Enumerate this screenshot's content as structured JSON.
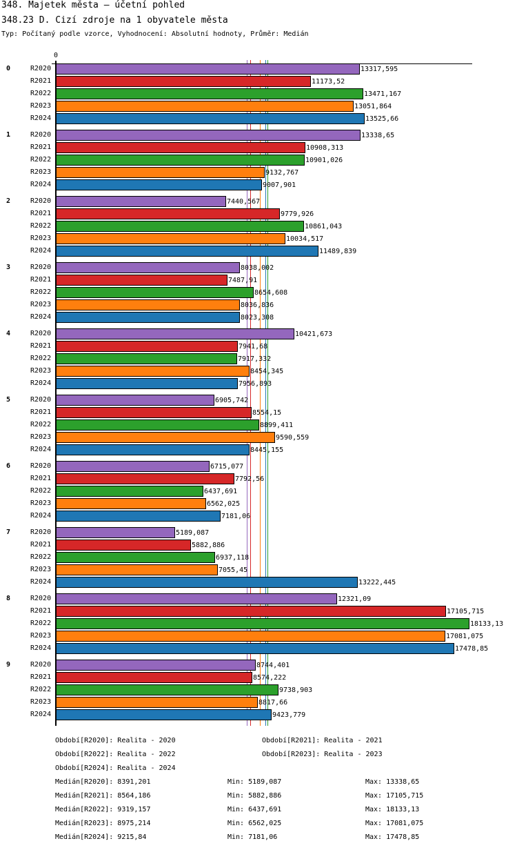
{
  "header": {
    "title": "348. Majetek města – účetní pohled",
    "subtitle": "348.23 D. Cizí zdroje na 1 obyvatele města",
    "info": "Typ: Počítaný podle vzorce, Vyhodnocení: Absolutní hodnoty, Průměr: Medián"
  },
  "chart_data": {
    "type": "bar",
    "orientation": "horizontal",
    "x_tick_label": "0",
    "xlim": [
      0,
      18133.13
    ],
    "categories": [
      "0",
      "1",
      "2",
      "3",
      "4",
      "5",
      "6",
      "7",
      "8",
      "9"
    ],
    "series": [
      {
        "name": "R2020",
        "color": "#9467bd",
        "values": [
          13317.595,
          13338.65,
          7440.567,
          8038.002,
          10421.673,
          6905.742,
          6715.077,
          5189.087,
          12321.09,
          8744.401
        ],
        "labels": [
          "13317,595",
          "13338,65",
          "7440,567",
          "8038,002",
          "10421,673",
          "6905,742",
          "6715,077",
          "5189,087",
          "12321,09",
          "8744,401"
        ]
      },
      {
        "name": "R2021",
        "color": "#d62728",
        "values": [
          11173.52,
          10908.313,
          9779.926,
          7487.91,
          7941.68,
          8554.15,
          7792.56,
          5882.886,
          17105.715,
          8574.222
        ],
        "labels": [
          "11173,52",
          "10908,313",
          "9779,926",
          "7487,91",
          "7941,68",
          "8554,15",
          "7792,56",
          "5882,886",
          "17105,715",
          "8574,222"
        ]
      },
      {
        "name": "R2022",
        "color": "#2ca02c",
        "values": [
          13471.167,
          10901.026,
          10861.043,
          8654.608,
          7917.332,
          8899.411,
          6437.691,
          6937.118,
          18133.13,
          9738.903
        ],
        "labels": [
          "13471,167",
          "10901,026",
          "10861,043",
          "8654,608",
          "7917,332",
          "8899,411",
          "6437,691",
          "6937,118",
          "18133,13",
          "9738,903"
        ]
      },
      {
        "name": "R2023",
        "color": "#ff7f0e",
        "values": [
          13051.864,
          9132.767,
          10034.517,
          8036.836,
          8454.345,
          9590.559,
          6562.025,
          7055.45,
          17081.075,
          8817.66
        ],
        "labels": [
          "13051,864",
          "9132,767",
          "10034,517",
          "8036,836",
          "8454,345",
          "9590,559",
          "6562,025",
          "7055,45",
          "17081,075",
          "8817,66"
        ]
      },
      {
        "name": "R2024",
        "color": "#1f77b4",
        "values": [
          13525.66,
          9007.901,
          11489.839,
          8023.308,
          7956.893,
          8445.155,
          7181.06,
          13222.445,
          17478.85,
          9423.779
        ],
        "labels": [
          "13525,66",
          "9007,901",
          "11489,839",
          "8023,308",
          "7956,893",
          "8445,155",
          "7181,06",
          "13222,445",
          "17478,85",
          "9423,779"
        ]
      }
    ],
    "medians": [
      8391.201,
      8564.186,
      9319.157,
      8975.214,
      9215.84
    ]
  },
  "legend": {
    "periods": [
      "Období[R2020]: Realita - 2020",
      "Období[R2021]: Realita - 2021",
      "Období[R2022]: Realita - 2022",
      "Období[R2023]: Realita - 2023",
      "Období[R2024]: Realita - 2024"
    ],
    "stats": [
      {
        "median": "Medián[R2020]: 8391,201",
        "min": "Min: 5189,087",
        "max": "Max: 13338,65"
      },
      {
        "median": "Medián[R2021]: 8564,186",
        "min": "Min: 5882,886",
        "max": "Max: 17105,715"
      },
      {
        "median": "Medián[R2022]: 9319,157",
        "min": "Min: 6437,691",
        "max": "Max: 18133,13"
      },
      {
        "median": "Medián[R2023]: 8975,214",
        "min": "Min: 6562,025",
        "max": "Max: 17081,075"
      },
      {
        "median": "Medián[R2024]: 9215,84",
        "min": "Min: 7181,06",
        "max": "Max: 17478,85"
      }
    ]
  }
}
